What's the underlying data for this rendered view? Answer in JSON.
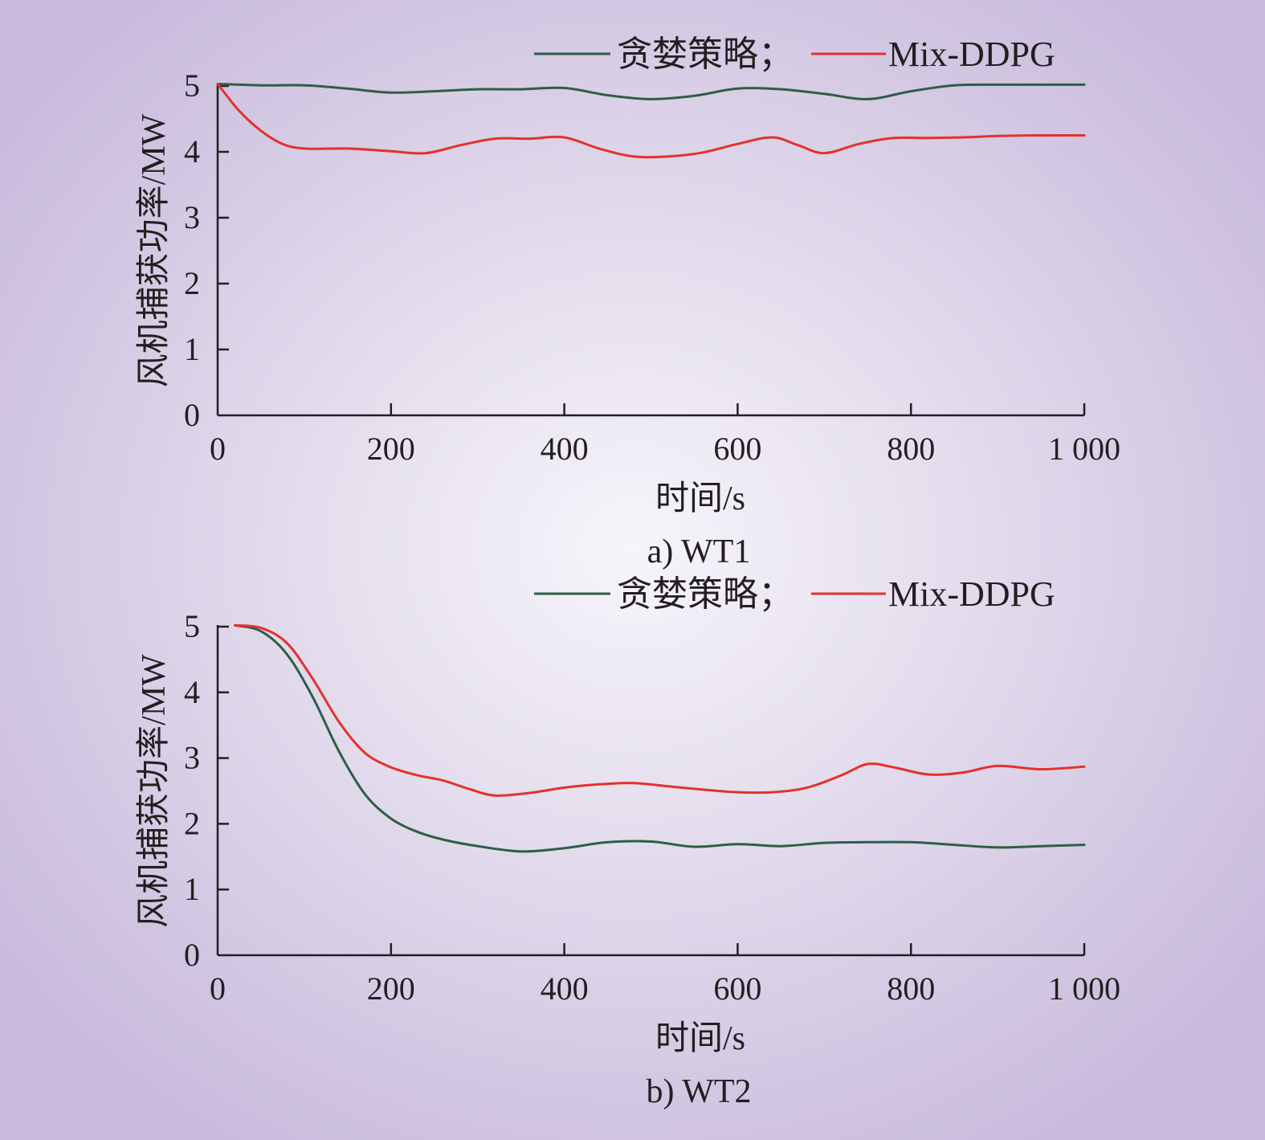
{
  "colors": {
    "greedy": "#2e5e46",
    "mix": "#e4312b",
    "axis": "#231f20"
  },
  "chart_data": [
    {
      "type": "line",
      "caption": "a) WT1",
      "xlabel": "时间/s",
      "ylabel": "风机捕获功率/MW",
      "xlim": [
        0,
        1000
      ],
      "ylim": [
        0,
        5
      ],
      "xticks": [
        0,
        200,
        400,
        600,
        800,
        1000
      ],
      "xtick_labels": [
        "0",
        "200",
        "400",
        "600",
        "800",
        "1 000"
      ],
      "yticks": [
        0,
        1,
        2,
        3,
        4,
        5
      ],
      "ytick_labels": [
        "0",
        "1",
        "2",
        "3",
        "4",
        "5"
      ],
      "legend": {
        "position": "top-right",
        "separator": "；"
      },
      "series": [
        {
          "name": "贪婪策略",
          "color_key": "greedy",
          "x": [
            0,
            50,
            100,
            150,
            200,
            250,
            300,
            350,
            400,
            450,
            500,
            550,
            600,
            650,
            700,
            750,
            800,
            850,
            900,
            950,
            1000
          ],
          "values": [
            5.03,
            5.01,
            5.01,
            4.96,
            4.9,
            4.92,
            4.95,
            4.95,
            4.97,
            4.86,
            4.8,
            4.85,
            4.96,
            4.95,
            4.88,
            4.8,
            4.92,
            5.01,
            5.02,
            5.02,
            5.02
          ]
        },
        {
          "name": "Mix-DDPG",
          "color_key": "mix",
          "x": [
            0,
            25,
            50,
            75,
            100,
            150,
            200,
            240,
            280,
            320,
            360,
            400,
            440,
            480,
            520,
            560,
            600,
            640,
            670,
            700,
            740,
            780,
            820,
            860,
            900,
            950,
            1000
          ],
          "values": [
            5.03,
            4.62,
            4.32,
            4.12,
            4.05,
            4.05,
            4.01,
            3.98,
            4.1,
            4.2,
            4.2,
            4.22,
            4.05,
            3.93,
            3.93,
            3.99,
            4.12,
            4.22,
            4.1,
            3.98,
            4.12,
            4.21,
            4.21,
            4.22,
            4.24,
            4.25,
            4.25
          ]
        }
      ]
    },
    {
      "type": "line",
      "caption": "b) WT2",
      "xlabel": "时间/s",
      "ylabel": "风机捕获功率/MW",
      "xlim": [
        0,
        1000
      ],
      "ylim": [
        0,
        5
      ],
      "xticks": [
        0,
        200,
        400,
        600,
        800,
        1000
      ],
      "xtick_labels": [
        "0",
        "200",
        "400",
        "600",
        "800",
        "1 000"
      ],
      "yticks": [
        0,
        1,
        2,
        3,
        4,
        5
      ],
      "ytick_labels": [
        "0",
        "1",
        "2",
        "3",
        "4",
        "5"
      ],
      "legend": {
        "position": "top-right",
        "separator": "；"
      },
      "series": [
        {
          "name": "贪婪策略",
          "color_key": "greedy",
          "x": [
            20,
            50,
            80,
            110,
            140,
            170,
            200,
            230,
            260,
            300,
            350,
            400,
            450,
            500,
            550,
            600,
            650,
            700,
            750,
            800,
            850,
            900,
            950,
            1000
          ],
          "values": [
            5.02,
            4.93,
            4.58,
            3.92,
            3.1,
            2.45,
            2.08,
            1.88,
            1.76,
            1.66,
            1.58,
            1.63,
            1.72,
            1.73,
            1.65,
            1.69,
            1.66,
            1.71,
            1.72,
            1.72,
            1.68,
            1.64,
            1.66,
            1.68
          ]
        },
        {
          "name": "Mix-DDPG",
          "color_key": "mix",
          "x": [
            20,
            50,
            80,
            110,
            140,
            170,
            200,
            230,
            260,
            290,
            320,
            360,
            400,
            440,
            480,
            520,
            560,
            600,
            640,
            680,
            720,
            750,
            780,
            820,
            860,
            900,
            950,
            1000
          ],
          "values": [
            5.02,
            4.98,
            4.75,
            4.2,
            3.55,
            3.08,
            2.86,
            2.74,
            2.66,
            2.53,
            2.43,
            2.47,
            2.55,
            2.6,
            2.62,
            2.57,
            2.52,
            2.48,
            2.48,
            2.55,
            2.74,
            2.91,
            2.86,
            2.75,
            2.78,
            2.88,
            2.83,
            2.87
          ]
        }
      ]
    }
  ]
}
